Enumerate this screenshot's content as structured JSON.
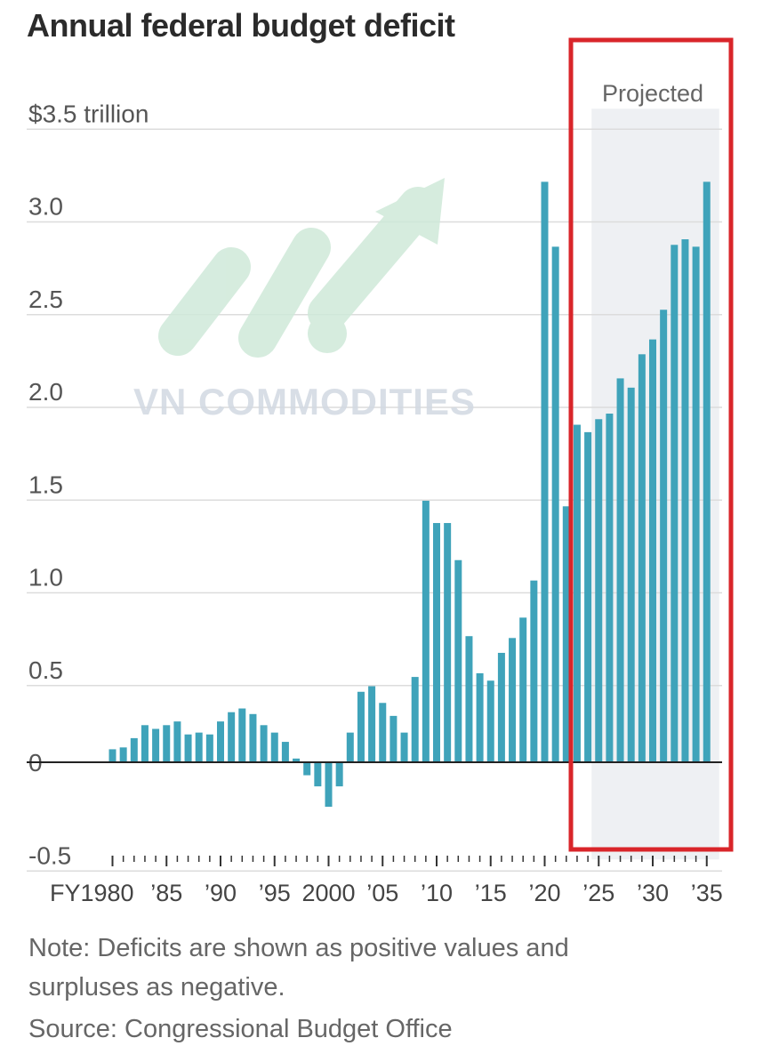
{
  "title": "Annual federal budget deficit",
  "notes": {
    "line1": "Note: Deficits are shown as positive values and",
    "line2": "surpluses as negative.",
    "source": "Source: Congressional Budget Office"
  },
  "watermark": {
    "text": "VN COMMODITIES",
    "color": "#c8e6d2"
  },
  "colors": {
    "bar": "#3fa3ba",
    "projected_band": "#eef0f3",
    "highlight_box": "#d9252a",
    "zero_line": "#222222"
  },
  "chart_data": {
    "type": "bar",
    "title": "Annual federal budget deficit",
    "ylabel": "$3.5 trillion",
    "ylim": [
      -0.5,
      3.5
    ],
    "yticks": [
      {
        "value": 3.5,
        "label": "$3.5 trillion"
      },
      {
        "value": 3.0,
        "label": "3.0"
      },
      {
        "value": 2.5,
        "label": "2.5"
      },
      {
        "value": 2.0,
        "label": "2.0"
      },
      {
        "value": 1.5,
        "label": "1.5"
      },
      {
        "value": 1.0,
        "label": "1.0"
      },
      {
        "value": 0.5,
        "label": "0.5"
      },
      {
        "value": 0,
        "label": "0"
      },
      {
        "value": -0.5,
        "label": "-0.5"
      }
    ],
    "xticks": [
      {
        "year": 1980,
        "label": "FY1980"
      },
      {
        "year": 1985,
        "label": "’85"
      },
      {
        "year": 1990,
        "label": "’90"
      },
      {
        "year": 1995,
        "label": "’95"
      },
      {
        "year": 2000,
        "label": "2000"
      },
      {
        "year": 2005,
        "label": "’05"
      },
      {
        "year": 2010,
        "label": "’10"
      },
      {
        "year": 2015,
        "label": "’15"
      },
      {
        "year": 2020,
        "label": "’20"
      },
      {
        "year": 2025,
        "label": "’25"
      },
      {
        "year": 2030,
        "label": "’30"
      },
      {
        "year": 2035,
        "label": "’35"
      }
    ],
    "projected": {
      "label": "Projected",
      "start_year": 2025,
      "end_year": 2035
    },
    "grid": true,
    "years": [
      1980,
      1981,
      1982,
      1983,
      1984,
      1985,
      1986,
      1987,
      1988,
      1989,
      1990,
      1991,
      1992,
      1993,
      1994,
      1995,
      1996,
      1997,
      1998,
      1999,
      2000,
      2001,
      2002,
      2003,
      2004,
      2005,
      2006,
      2007,
      2008,
      2009,
      2010,
      2011,
      2012,
      2013,
      2014,
      2015,
      2016,
      2017,
      2018,
      2019,
      2020,
      2021,
      2022,
      2023,
      2024,
      2025,
      2026,
      2027,
      2028,
      2029,
      2030,
      2031,
      2032,
      2033,
      2034,
      2035
    ],
    "values": [
      0.07,
      0.08,
      0.13,
      0.2,
      0.18,
      0.2,
      0.22,
      0.15,
      0.16,
      0.15,
      0.22,
      0.27,
      0.29,
      0.26,
      0.2,
      0.16,
      0.11,
      0.02,
      -0.07,
      -0.13,
      -0.24,
      -0.13,
      0.16,
      0.38,
      0.41,
      0.32,
      0.25,
      0.16,
      0.46,
      1.41,
      1.29,
      1.29,
      1.09,
      0.68,
      0.48,
      0.44,
      0.59,
      0.67,
      0.78,
      0.98,
      3.13,
      2.78,
      1.38,
      1.82,
      1.78,
      1.85,
      1.88,
      2.07,
      2.02,
      2.2,
      2.28,
      2.44,
      2.79,
      2.82,
      2.78,
      3.13
    ]
  }
}
